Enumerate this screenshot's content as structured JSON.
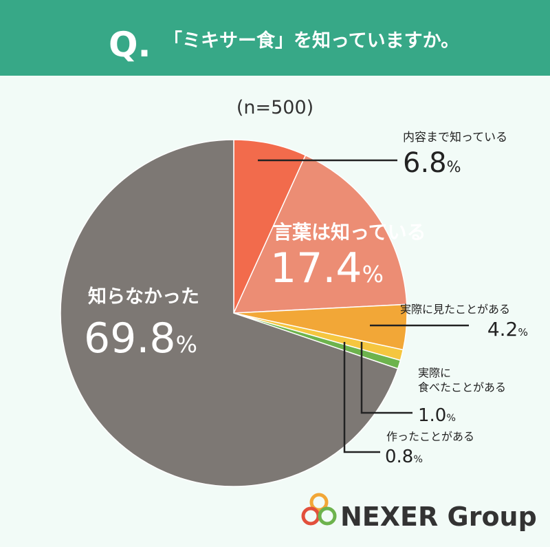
{
  "header": {
    "q": "Q.",
    "question": "「ミキサー食」を知っていますか。"
  },
  "chart_data": {
    "type": "pie",
    "subtitle": "(n=500)",
    "categories": [
      "内容まで知っている",
      "言葉は知っている",
      "実際に見たことがある",
      "実際に\n食べたことがある",
      "作ったことがある",
      "知らなかった"
    ],
    "values": [
      6.8,
      17.4,
      4.2,
      1.0,
      0.8,
      69.8
    ],
    "value_labels": [
      "6.8%",
      "17.4%",
      "4.2%",
      "1.0%",
      "0.8%",
      "69.8%"
    ],
    "colors": [
      "#f26b4c",
      "#ec8d74",
      "#f2a737",
      "#f5c63f",
      "#6db34d",
      "#7d7874"
    ]
  },
  "logo": {
    "text": "NEXER Group"
  }
}
